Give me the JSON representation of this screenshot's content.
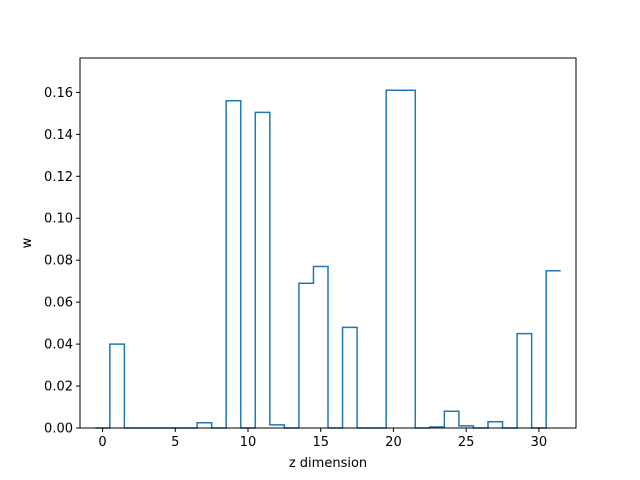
{
  "chart_data": {
    "type": "bar",
    "style": "step",
    "title": "",
    "xlabel": "z dimension",
    "ylabel": "w",
    "xlim": [
      -1.55,
      32.55
    ],
    "ylim": [
      0,
      0.1764
    ],
    "grid": false,
    "legend": null,
    "x_ticks": [
      0,
      5,
      10,
      15,
      20,
      25,
      30
    ],
    "x_tick_labels": [
      "0",
      "5",
      "10",
      "15",
      "20",
      "25",
      "30"
    ],
    "y_ticks": [
      0.0,
      0.02,
      0.04,
      0.06,
      0.08,
      0.1,
      0.12,
      0.14,
      0.16
    ],
    "y_tick_labels": [
      "0.00",
      "0.02",
      "0.04",
      "0.06",
      "0.08",
      "0.10",
      "0.12",
      "0.14",
      "0.16"
    ],
    "line_color": "#1f77b4",
    "x": [
      0,
      1,
      2,
      3,
      4,
      5,
      6,
      7,
      8,
      9,
      10,
      11,
      12,
      13,
      14,
      15,
      16,
      17,
      18,
      19,
      20,
      21,
      22,
      23,
      24,
      25,
      26,
      27,
      28,
      29,
      30,
      31
    ],
    "values": [
      0.0,
      0.04,
      0.0,
      0.0,
      0.0,
      0.0,
      0.0,
      0.0025,
      0.0,
      0.156,
      0.0,
      0.1505,
      0.0015,
      0.0,
      0.069,
      0.077,
      0.0,
      0.048,
      0.0,
      0.0,
      0.161,
      0.161,
      0.0,
      0.0005,
      0.008,
      0.001,
      0.0,
      0.003,
      0.0,
      0.045,
      0.0,
      0.075
    ]
  }
}
